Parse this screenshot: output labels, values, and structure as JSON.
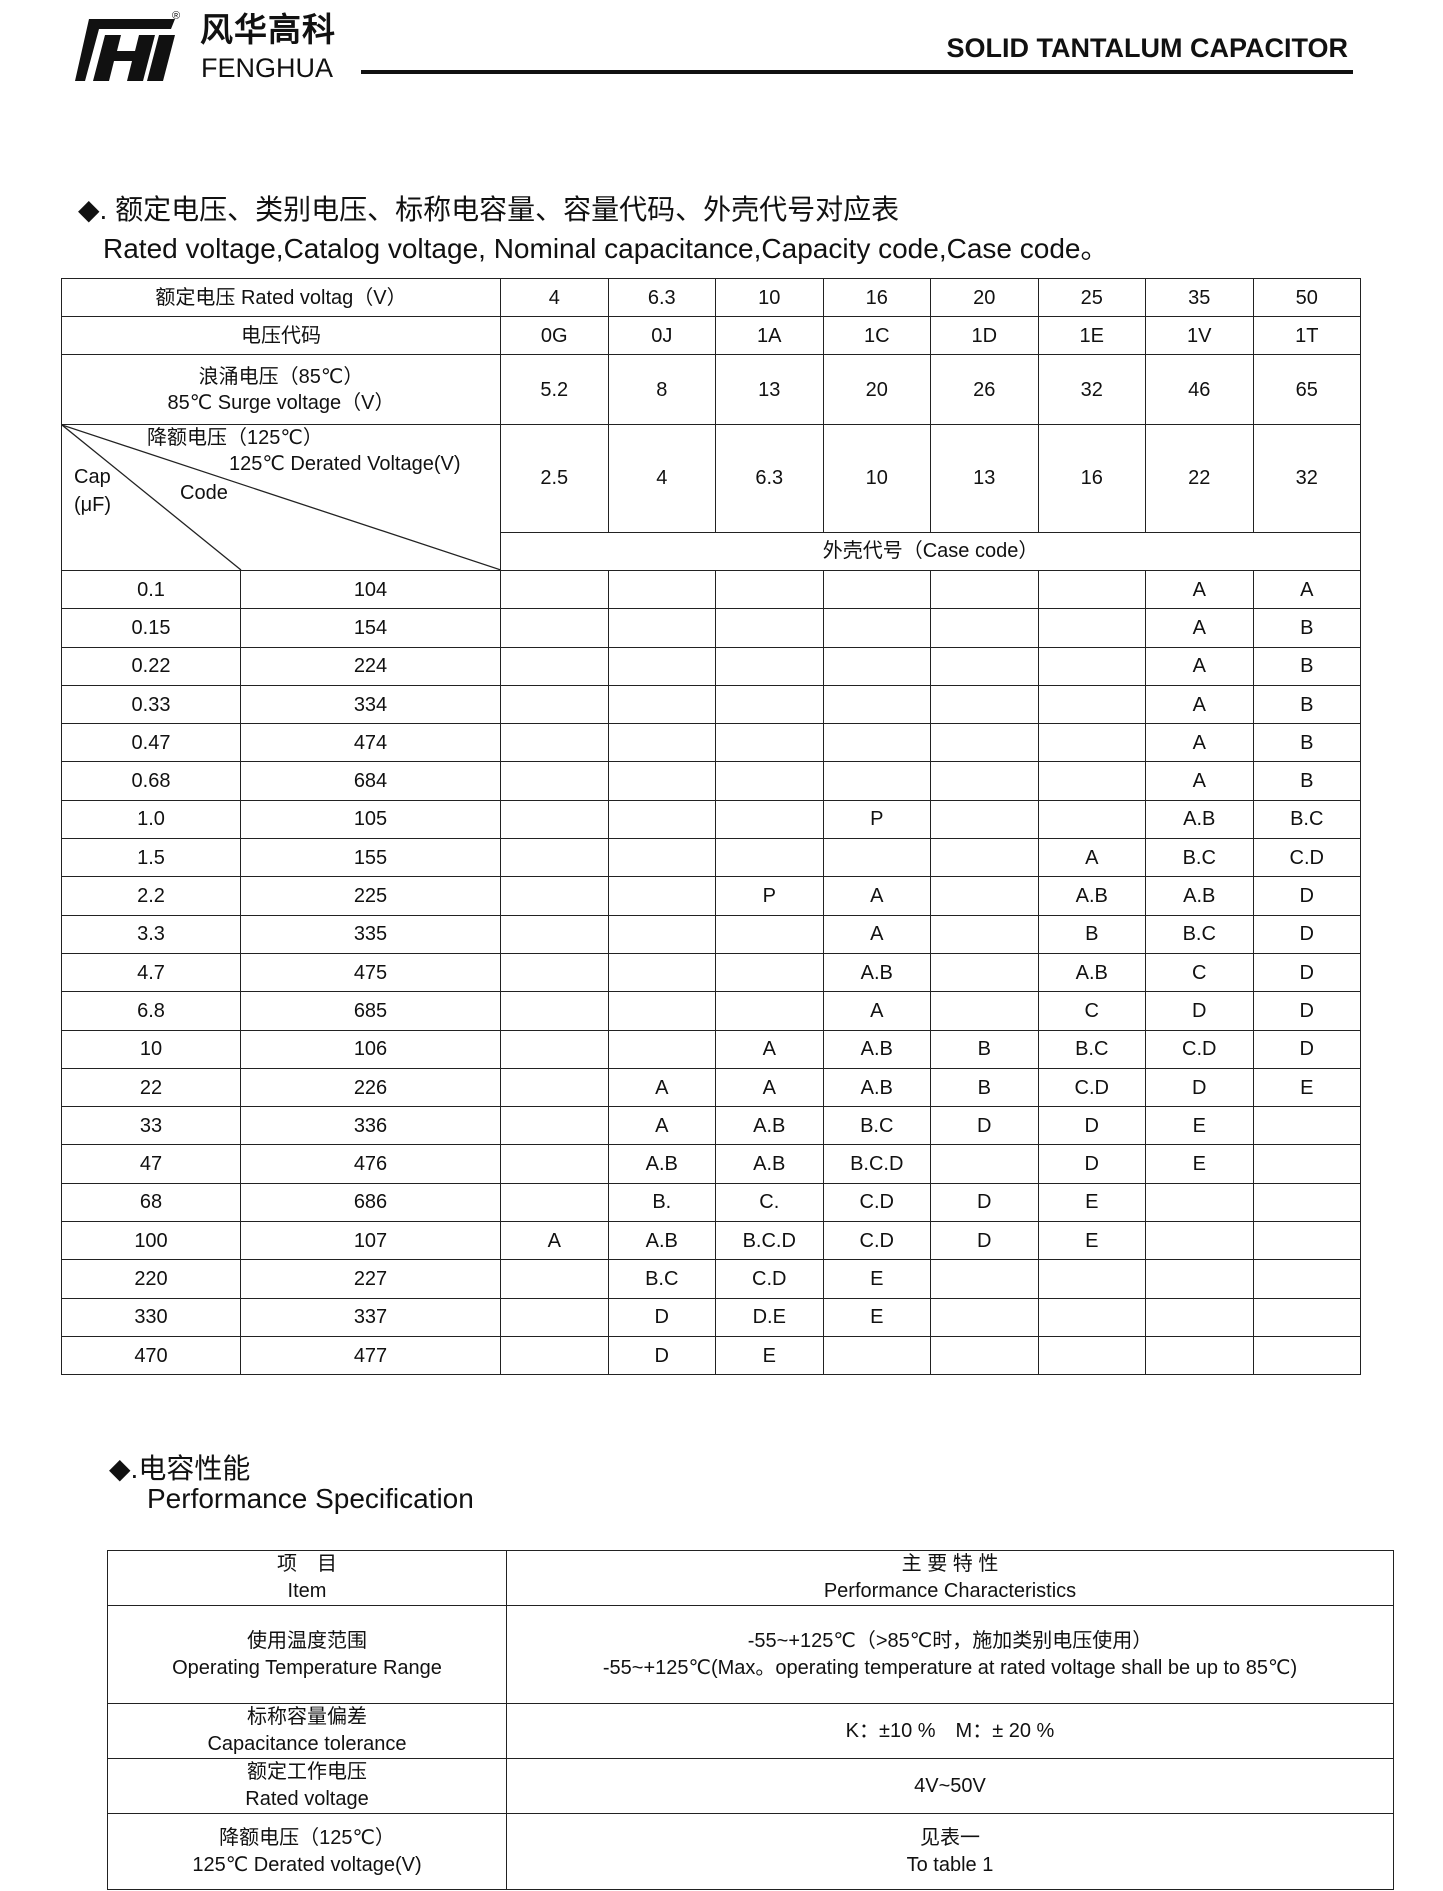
{
  "header": {
    "brand_cn": "风华高科",
    "brand_en": "FENGHUA",
    "registered": "®",
    "title": "SOLID TANTALUM CAPACITOR"
  },
  "section1": {
    "heading_cn": "◆. 额定电压、类别电压、标称电容量、容量代码、外壳代号对应表",
    "heading_en": "Rated voltage,Catalog voltage, Nominal capacitance,Capacity code,Case code。"
  },
  "table1": {
    "rated_voltage_label": "额定电压 Rated voltag（V）",
    "voltage_code_label": "电压代码",
    "surge_label_cn": "浪涌电压（85℃）",
    "surge_label_en": "85℃ Surge voltage（V）",
    "derated_label_cn": "降额电压（125℃）",
    "derated_label_en": "125℃ Derated Voltage(V)",
    "cap_label": "Cap",
    "cap_unit": "(μF)",
    "code_label": "Code",
    "case_code_label": "外壳代号（Case code）",
    "rated_voltages": [
      "4",
      "6.3",
      "10",
      "16",
      "20",
      "25",
      "35",
      "50"
    ],
    "voltage_codes": [
      "0G",
      "0J",
      "1A",
      "1C",
      "1D",
      "1E",
      "1V",
      "1T"
    ],
    "surge_voltages": [
      "5.2",
      "8",
      "13",
      "20",
      "26",
      "32",
      "46",
      "65"
    ],
    "derated_voltages": [
      "2.5",
      "4",
      "6.3",
      "10",
      "13",
      "16",
      "22",
      "32"
    ],
    "rows": [
      {
        "cap": "0.1",
        "code": "104",
        "cases": [
          "",
          "",
          "",
          "",
          "",
          "",
          "A",
          "A"
        ]
      },
      {
        "cap": "0.15",
        "code": "154",
        "cases": [
          "",
          "",
          "",
          "",
          "",
          "",
          "A",
          "B"
        ]
      },
      {
        "cap": "0.22",
        "code": "224",
        "cases": [
          "",
          "",
          "",
          "",
          "",
          "",
          "A",
          "B"
        ]
      },
      {
        "cap": "0.33",
        "code": "334",
        "cases": [
          "",
          "",
          "",
          "",
          "",
          "",
          "A",
          "B"
        ]
      },
      {
        "cap": "0.47",
        "code": "474",
        "cases": [
          "",
          "",
          "",
          "",
          "",
          "",
          "A",
          "B"
        ]
      },
      {
        "cap": "0.68",
        "code": "684",
        "cases": [
          "",
          "",
          "",
          "",
          "",
          "",
          "A",
          "B"
        ]
      },
      {
        "cap": "1.0",
        "code": "105",
        "cases": [
          "",
          "",
          "",
          "P",
          "",
          "",
          "A.B",
          "B.C"
        ]
      },
      {
        "cap": "1.5",
        "code": "155",
        "cases": [
          "",
          "",
          "",
          "",
          "",
          "A",
          "B.C",
          "C.D"
        ]
      },
      {
        "cap": "2.2",
        "code": "225",
        "cases": [
          "",
          "",
          "P",
          "A",
          "",
          "A.B",
          "A.B",
          "D"
        ]
      },
      {
        "cap": "3.3",
        "code": "335",
        "cases": [
          "",
          "",
          "",
          "A",
          "",
          "B",
          "B.C",
          "D"
        ]
      },
      {
        "cap": "4.7",
        "code": "475",
        "cases": [
          "",
          "",
          "",
          "A.B",
          "",
          "A.B",
          "C",
          "D"
        ]
      },
      {
        "cap": "6.8",
        "code": "685",
        "cases": [
          "",
          "",
          "",
          "A",
          "",
          "C",
          "D",
          "D"
        ]
      },
      {
        "cap": "10",
        "code": "106",
        "cases": [
          "",
          "",
          "A",
          "A.B",
          "B",
          "B.C",
          "C.D",
          "D"
        ]
      },
      {
        "cap": "22",
        "code": "226",
        "cases": [
          "",
          "A",
          "A",
          "A.B",
          "B",
          "C.D",
          "D",
          "E"
        ]
      },
      {
        "cap": "33",
        "code": "336",
        "cases": [
          "",
          "A",
          "A.B",
          "B.C",
          "D",
          "D",
          "E",
          ""
        ]
      },
      {
        "cap": "47",
        "code": "476",
        "cases": [
          "",
          "A.B",
          "A.B",
          "B.C.D",
          "",
          "D",
          "E",
          ""
        ]
      },
      {
        "cap": "68",
        "code": "686",
        "cases": [
          "",
          "B.",
          "C.",
          "C.D",
          "D",
          "E",
          "",
          ""
        ]
      },
      {
        "cap": "100",
        "code": "107",
        "cases": [
          "A",
          "A.B",
          "B.C.D",
          "C.D",
          "D",
          "E",
          "",
          ""
        ]
      },
      {
        "cap": "220",
        "code": "227",
        "cases": [
          "",
          "B.C",
          "C.D",
          "E",
          "",
          "",
          "",
          ""
        ]
      },
      {
        "cap": "330",
        "code": "337",
        "cases": [
          "",
          "D",
          "D.E",
          "E",
          "",
          "",
          "",
          ""
        ]
      },
      {
        "cap": "470",
        "code": "477",
        "cases": [
          "",
          "D",
          "E",
          "",
          "",
          "",
          "",
          ""
        ]
      }
    ]
  },
  "section2": {
    "heading_cn": "◆.电容性能",
    "heading_en": "Performance Specification"
  },
  "table2": {
    "header": {
      "item_cn": "项　目",
      "item_en": "Item",
      "char_cn": "主 要 特 性",
      "char_en": "Performance Characteristics"
    },
    "rows": [
      {
        "item_cn": "使用温度范围",
        "item_en": "Operating Temperature Range",
        "val1": "-55~+125℃（>85℃时，施加类别电压使用）",
        "val2": "-55~+125℃(Max。operating temperature at rated voltage shall be up to 85℃)"
      },
      {
        "item_cn": "标称容量偏差",
        "item_en": "Capacitance tolerance",
        "val1": "K：±10 %　M：± 20 %",
        "val2": ""
      },
      {
        "item_cn": "额定工作电压",
        "item_en": "Rated voltage",
        "val1": "4V~50V",
        "val2": ""
      },
      {
        "item_cn": "降额电压（125℃）",
        "item_en": "125℃ Derated voltage(V)",
        "val1": "见表一",
        "val2": "To  table  1"
      }
    ]
  }
}
